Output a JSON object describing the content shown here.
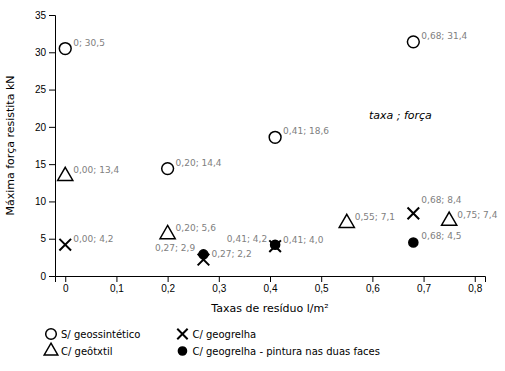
{
  "chart_data": {
    "type": "scatter",
    "xlabel": "Taxas de resíduo l/m²",
    "ylabel": "Máxima força resistita kN",
    "annotation": "taxa ; força",
    "xlim": [
      -0.02,
      0.82
    ],
    "ylim": [
      0,
      35
    ],
    "xticks": [
      0,
      {
        "value": 0.1,
        "label": "0,1"
      },
      {
        "value": 0.2,
        "label": "0,2"
      },
      {
        "value": 0.3,
        "label": "0,3"
      },
      {
        "value": 0.4,
        "label": "0,4"
      },
      {
        "value": 0.5,
        "label": "0,5"
      },
      {
        "value": 0.6,
        "label": "0,6"
      },
      {
        "value": 0.7,
        "label": "0,7"
      },
      {
        "value": 0.8,
        "label": "0,8"
      }
    ],
    "yticks": [
      0,
      5,
      10,
      15,
      20,
      25,
      30,
      35
    ],
    "grid": false,
    "legend": "bottom",
    "data_labels": true,
    "series": [
      {
        "name": "S/ geossintético",
        "color": "black",
        "marker": "circle-open",
        "x": [
          0,
          0.2,
          0.41,
          0.68
        ],
        "values": [
          30.5,
          14.4,
          18.6,
          31.4
        ],
        "value_labels": [
          "0; 30,5",
          "0,20; 14,4",
          "0,41; 18,6",
          "0,68; 31,4"
        ]
      },
      {
        "name": "C/ geôtxtil",
        "color": "black",
        "marker": "triangle-open",
        "x": [
          0,
          0.2,
          0.55,
          0.75
        ],
        "values": [
          13.4,
          5.6,
          7.1,
          7.4
        ],
        "value_labels": [
          "0,00; 13,4",
          "0,20; 5,6",
          "0,55; 7,1",
          "0,75; 7,4"
        ]
      },
      {
        "name": "C/ geogrelha",
        "color": "black",
        "marker": "x",
        "x": [
          0,
          0.27,
          0.41,
          0.68
        ],
        "values": [
          4.2,
          2.2,
          4.0,
          8.4
        ],
        "value_labels": [
          "0,00; 4,2",
          "0,27; 2,2",
          "0,41; 4,0",
          "0,68; 8,4"
        ]
      },
      {
        "name": "C/ geogrelha - pintura nas duas faces",
        "color": "black",
        "marker": "circle",
        "x": [
          0.27,
          0.41,
          0.68
        ],
        "values": [
          2.9,
          4.2,
          4.5
        ],
        "value_labels": [
          "0,27; 2,9",
          "0,41; 4,2",
          "0,68; 4,5"
        ]
      }
    ]
  }
}
